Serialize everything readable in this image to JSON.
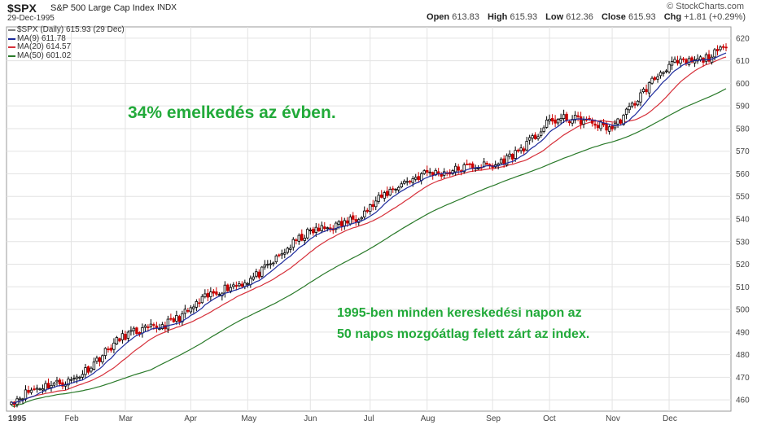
{
  "header": {
    "symbol": "$SPX",
    "description": "S&P 500 Large Cap Index",
    "exchange": "INDX",
    "date": "29-Dec-1995",
    "brand": "© StockCharts.com",
    "open_label": "Open",
    "open": "613.83",
    "high_label": "High",
    "high": "615.93",
    "low_label": "Low",
    "low": "612.36",
    "close_label": "Close",
    "close": "615.93",
    "chg_label": "Chg",
    "chg": "+1.81 (+0.29%)"
  },
  "legend": [
    {
      "label": "$SPX (Daily) 615.93 (29 Dec)",
      "color": "#808080"
    },
    {
      "label": "MA(9) 611.78",
      "color": "#1c2a9c"
    },
    {
      "label": "MA(20) 614.57",
      "color": "#d6303a"
    },
    {
      "label": "MA(50) 601.02",
      "color": "#2a7a2a"
    }
  ],
  "annotations": {
    "text1": "34% emelkedés az évben.",
    "text2_line1": "1995-ben minden kereskedési napon az",
    "text2_line2": "50 napos mozgóátlag felett zárt az index."
  },
  "chart_data": {
    "type": "candlestick",
    "ylim": [
      455,
      625
    ],
    "yticks": [
      460,
      470,
      480,
      490,
      500,
      510,
      520,
      530,
      540,
      550,
      560,
      570,
      580,
      590,
      600,
      610,
      620
    ],
    "xticks": [
      "1995",
      "Feb",
      "Mar",
      "Apr",
      "May",
      "Jun",
      "Jul",
      "Aug",
      "Sep",
      "Oct",
      "Nov",
      "Dec"
    ],
    "grid": true,
    "colors": {
      "up": "#000000",
      "down": "#cc0000",
      "ma9": "#1c2a9c",
      "ma20": "#d6303a",
      "ma50": "#2a7a2a"
    },
    "monthly_close": [
      {
        "month": "1995",
        "close": 459
      },
      {
        "month": "Feb",
        "close": 470
      },
      {
        "month": "Mar",
        "close": 487
      },
      {
        "month": "Apr",
        "close": 500
      },
      {
        "month": "May",
        "close": 514
      },
      {
        "month": "Jun",
        "close": 533
      },
      {
        "month": "Jul",
        "close": 545
      },
      {
        "month": "Aug",
        "close": 562
      },
      {
        "month": "Sep",
        "close": 562
      },
      {
        "month": "Oct",
        "close": 583
      },
      {
        "month": "Nov",
        "close": 582
      },
      {
        "month": "Dec",
        "close": 607
      },
      {
        "month": "Dec-end",
        "close": 615.93
      }
    ],
    "last_values": {
      "close": 615.93,
      "ma9": 611.78,
      "ma20": 614.57,
      "ma50": 601.02
    }
  }
}
